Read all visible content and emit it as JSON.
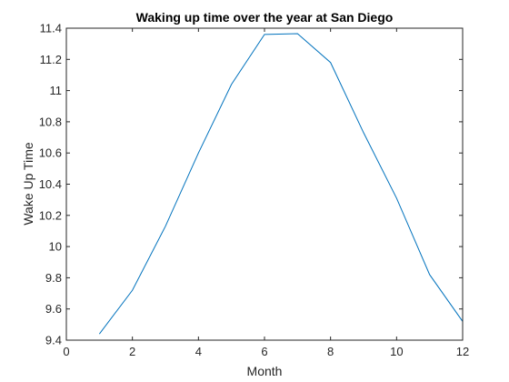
{
  "chart_data": {
    "type": "line",
    "title": "Waking up time over the year at San Diego",
    "xlabel": "Month",
    "ylabel": "Wake Up Time",
    "xlim": [
      0,
      12
    ],
    "ylim": [
      9.4,
      11.4
    ],
    "xticks": [
      0,
      2,
      4,
      6,
      8,
      10,
      12
    ],
    "xtick_labels": [
      "0",
      "2",
      "4",
      "6",
      "8",
      "10",
      "12"
    ],
    "yticks": [
      9.4,
      9.6,
      9.8,
      10,
      10.2,
      10.4,
      10.6,
      10.8,
      11,
      11.2,
      11.4
    ],
    "ytick_labels": [
      "9.4",
      "9.6",
      "9.8",
      "10",
      "10.2",
      "10.4",
      "10.6",
      "10.8",
      "11",
      "11.2",
      "11.4"
    ],
    "grid": false,
    "series": [
      {
        "color": "#0072bd",
        "x": [
          1,
          2,
          3,
          4,
          5,
          6,
          7,
          8,
          9,
          10,
          11,
          12
        ],
        "y": [
          9.44,
          9.72,
          10.13,
          10.6,
          11.04,
          11.36,
          11.365,
          11.18,
          10.73,
          10.31,
          9.82,
          9.52
        ]
      }
    ]
  }
}
